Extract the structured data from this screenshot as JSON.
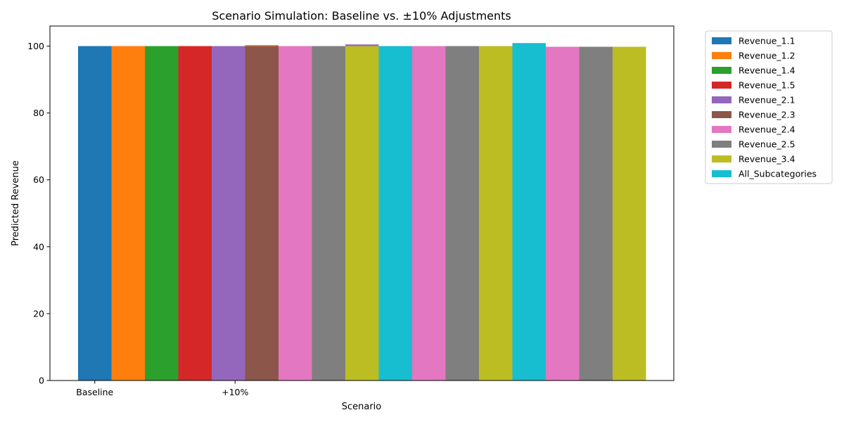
{
  "chart_data": {
    "type": "bar",
    "title": "Scenario Simulation: Baseline vs. ±10% Adjustments",
    "xlabel": "Scenario",
    "ylabel": "Predicted Revenue",
    "ylim": [
      0,
      106
    ],
    "yticks": [
      0,
      20,
      40,
      60,
      80,
      100
    ],
    "x_tick_labels": [
      {
        "label": "Baseline",
        "at_bar": 0.5
      },
      {
        "label": "+10%",
        "at_bar": 4.7
      }
    ],
    "legend_position": "outside-top-right",
    "grid": false,
    "palette": [
      "#1f77b4",
      "#ff7f0e",
      "#2ca02c",
      "#d62728",
      "#9467bd",
      "#8c564b",
      "#e377c2",
      "#7f7f7f",
      "#bcbd22",
      "#17becf"
    ],
    "legend": [
      "Revenue_1.1",
      "Revenue_1.2",
      "Revenue_1.4",
      "Revenue_1.5",
      "Revenue_2.1",
      "Revenue_2.3",
      "Revenue_2.4",
      "Revenue_2.5",
      "Revenue_3.4",
      "All_Subcategories"
    ],
    "bars": [
      {
        "series": 0,
        "value": 100.0
      },
      {
        "series": 1,
        "value": 100.0
      },
      {
        "series": 2,
        "value": 100.0
      },
      {
        "series": 3,
        "value": 100.0
      },
      {
        "series": 4,
        "value": 100.0
      },
      {
        "series": 5,
        "value": 100.0
      },
      {
        "series": 6,
        "value": 100.0
      },
      {
        "series": 7,
        "value": 100.0
      },
      {
        "series": 8,
        "value": 100.0
      },
      {
        "series": 9,
        "value": 100.0
      },
      {
        "series": 6,
        "value": 100.0
      },
      {
        "series": 7,
        "value": 100.0
      },
      {
        "series": 8,
        "value": 100.0
      },
      {
        "series": 9,
        "value": 100.9
      },
      {
        "series": 6,
        "value": 99.8
      },
      {
        "series": 7,
        "value": 99.8
      },
      {
        "series": 8,
        "value": 99.8
      }
    ],
    "peeking_bars": [
      {
        "bar_index": 5,
        "series": 1,
        "value": 100.3
      },
      {
        "bar_index": 8,
        "series": 4,
        "value": 100.5
      }
    ]
  }
}
